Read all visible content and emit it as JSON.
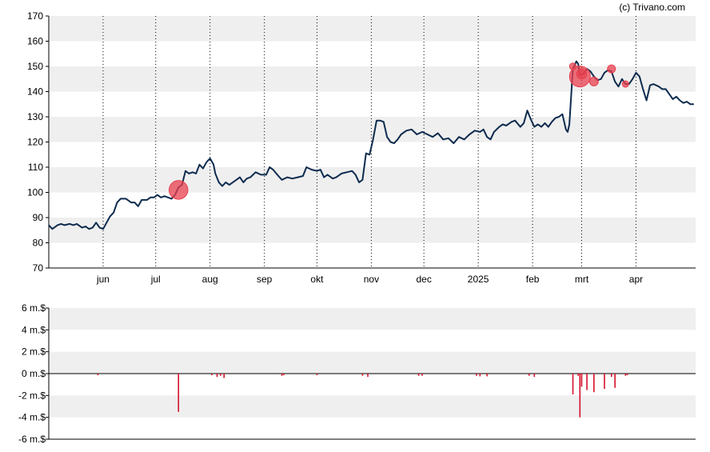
{
  "copyright": "(c) Trivano.com",
  "colors": {
    "band": "#efefef",
    "price_line": "#0d2b4e",
    "marker": "#e8404f",
    "volume_bar": "#d6102a"
  },
  "chart_data": [
    {
      "type": "line",
      "ylim": [
        70,
        170
      ],
      "y_ticks": [
        "70",
        "80",
        "90",
        "100",
        "110",
        "120",
        "130",
        "140",
        "150",
        "160",
        "170"
      ],
      "x_range": [
        "2024-05-01",
        "2025-05-05"
      ],
      "month_ticks": [
        {
          "date": "2024-06-01",
          "label": "jun"
        },
        {
          "date": "2024-07-01",
          "label": "jul"
        },
        {
          "date": "2024-08-01",
          "label": "aug"
        },
        {
          "date": "2024-09-01",
          "label": "sep"
        },
        {
          "date": "2024-10-01",
          "label": "okt"
        },
        {
          "date": "2024-11-01",
          "label": "nov"
        },
        {
          "date": "2024-12-01",
          "label": "dec"
        },
        {
          "date": "2025-01-01",
          "label": "2025"
        },
        {
          "date": "2025-02-01",
          "label": "feb"
        },
        {
          "date": "2025-03-01",
          "label": "mrt"
        },
        {
          "date": "2025-04-01",
          "label": "apr"
        }
      ],
      "series": [
        {
          "points": [
            [
              "2024-05-01",
              87
            ],
            [
              "2024-05-03",
              85.5
            ],
            [
              "2024-05-06",
              87
            ],
            [
              "2024-05-08",
              87.5
            ],
            [
              "2024-05-10",
              87
            ],
            [
              "2024-05-13",
              87.5
            ],
            [
              "2024-05-15",
              87
            ],
            [
              "2024-05-17",
              87.5
            ],
            [
              "2024-05-20",
              86
            ],
            [
              "2024-05-22",
              86.5
            ],
            [
              "2024-05-24",
              85.5
            ],
            [
              "2024-05-26",
              86
            ],
            [
              "2024-05-28",
              88
            ],
            [
              "2024-05-30",
              86
            ],
            [
              "2024-06-01",
              85.5
            ],
            [
              "2024-06-03",
              88
            ],
            [
              "2024-06-05",
              90.5
            ],
            [
              "2024-06-07",
              92
            ],
            [
              "2024-06-09",
              96
            ],
            [
              "2024-06-11",
              97.5
            ],
            [
              "2024-06-14",
              97.5
            ],
            [
              "2024-06-17",
              96
            ],
            [
              "2024-06-19",
              96
            ],
            [
              "2024-06-21",
              94.5
            ],
            [
              "2024-06-23",
              97
            ],
            [
              "2024-06-26",
              97
            ],
            [
              "2024-06-28",
              98
            ],
            [
              "2024-06-30",
              98
            ],
            [
              "2024-07-02",
              99
            ],
            [
              "2024-07-04",
              98
            ],
            [
              "2024-07-06",
              98.5
            ],
            [
              "2024-07-08",
              98
            ],
            [
              "2024-07-10",
              97.5
            ],
            [
              "2024-07-12",
              99
            ],
            [
              "2024-07-14",
              102
            ],
            [
              "2024-07-16",
              103
            ],
            [
              "2024-07-18",
              108.5
            ],
            [
              "2024-07-20",
              107.5
            ],
            [
              "2024-07-22",
              108
            ],
            [
              "2024-07-24",
              107.5
            ],
            [
              "2024-07-26",
              111
            ],
            [
              "2024-07-28",
              109.5
            ],
            [
              "2024-07-30",
              112
            ],
            [
              "2024-08-01",
              113.5
            ],
            [
              "2024-08-03",
              111
            ],
            [
              "2024-08-04",
              107.5
            ],
            [
              "2024-08-06",
              104
            ],
            [
              "2024-08-08",
              102.5
            ],
            [
              "2024-08-10",
              104
            ],
            [
              "2024-08-12",
              103
            ],
            [
              "2024-08-14",
              104
            ],
            [
              "2024-08-16",
              105
            ],
            [
              "2024-08-18",
              106
            ],
            [
              "2024-08-20",
              104
            ],
            [
              "2024-08-22",
              105.5
            ],
            [
              "2024-08-24",
              106
            ],
            [
              "2024-08-27",
              108
            ],
            [
              "2024-08-30",
              107
            ],
            [
              "2024-09-02",
              107
            ],
            [
              "2024-09-04",
              110
            ],
            [
              "2024-09-06",
              109
            ],
            [
              "2024-09-09",
              106.5
            ],
            [
              "2024-09-11",
              105
            ],
            [
              "2024-09-14",
              106
            ],
            [
              "2024-09-17",
              105.5
            ],
            [
              "2024-09-20",
              106
            ],
            [
              "2024-09-23",
              106.5
            ],
            [
              "2024-09-25",
              110
            ],
            [
              "2024-09-28",
              109
            ],
            [
              "2024-10-01",
              108.5
            ],
            [
              "2024-10-03",
              109
            ],
            [
              "2024-10-05",
              106
            ],
            [
              "2024-10-07",
              107
            ],
            [
              "2024-10-10",
              105.5
            ],
            [
              "2024-10-12",
              106
            ],
            [
              "2024-10-15",
              107.5
            ],
            [
              "2024-10-18",
              108
            ],
            [
              "2024-10-21",
              108.5
            ],
            [
              "2024-10-23",
              107
            ],
            [
              "2024-10-25",
              104
            ],
            [
              "2024-10-27",
              105
            ],
            [
              "2024-10-29",
              115.5
            ],
            [
              "2024-10-31",
              115
            ],
            [
              "2024-11-02",
              121
            ],
            [
              "2024-11-04",
              128.5
            ],
            [
              "2024-11-06",
              128.5
            ],
            [
              "2024-11-08",
              128
            ],
            [
              "2024-11-10",
              122
            ],
            [
              "2024-11-12",
              120
            ],
            [
              "2024-11-14",
              119.5
            ],
            [
              "2024-11-16",
              121
            ],
            [
              "2024-11-18",
              123
            ],
            [
              "2024-11-21",
              124.5
            ],
            [
              "2024-11-24",
              125
            ],
            [
              "2024-11-27",
              123
            ],
            [
              "2024-11-30",
              124
            ],
            [
              "2024-12-03",
              123
            ],
            [
              "2024-12-06",
              122
            ],
            [
              "2024-12-09",
              123.5
            ],
            [
              "2024-12-12",
              121
            ],
            [
              "2024-12-15",
              121.5
            ],
            [
              "2024-12-18",
              119.5
            ],
            [
              "2024-12-21",
              122
            ],
            [
              "2024-12-24",
              121
            ],
            [
              "2024-12-27",
              123
            ],
            [
              "2024-12-30",
              124.5
            ],
            [
              "2025-01-02",
              124
            ],
            [
              "2025-01-04",
              125
            ],
            [
              "2025-01-06",
              122
            ],
            [
              "2025-01-08",
              121
            ],
            [
              "2025-01-10",
              124
            ],
            [
              "2025-01-13",
              126
            ],
            [
              "2025-01-15",
              127
            ],
            [
              "2025-01-17",
              126.5
            ],
            [
              "2025-01-20",
              128
            ],
            [
              "2025-01-22",
              128.5
            ],
            [
              "2025-01-25",
              126
            ],
            [
              "2025-01-27",
              127.5
            ],
            [
              "2025-01-29",
              132.5
            ],
            [
              "2025-01-31",
              129
            ],
            [
              "2025-02-02",
              126
            ],
            [
              "2025-02-04",
              127
            ],
            [
              "2025-02-06",
              126
            ],
            [
              "2025-02-08",
              127.5
            ],
            [
              "2025-02-10",
              126
            ],
            [
              "2025-02-12",
              128
            ],
            [
              "2025-02-14",
              129.5
            ],
            [
              "2025-02-16",
              130
            ],
            [
              "2025-02-18",
              131
            ],
            [
              "2025-02-20",
              125
            ],
            [
              "2025-02-21",
              124
            ],
            [
              "2025-02-22",
              127
            ],
            [
              "2025-02-24",
              149
            ],
            [
              "2025-02-26",
              152
            ],
            [
              "2025-02-27",
              151
            ],
            [
              "2025-02-28",
              146.5
            ],
            [
              "2025-03-02",
              147
            ],
            [
              "2025-03-04",
              149
            ],
            [
              "2025-03-06",
              148
            ],
            [
              "2025-03-08",
              146
            ],
            [
              "2025-03-10",
              144.5
            ],
            [
              "2025-03-12",
              145
            ],
            [
              "2025-03-14",
              147.5
            ],
            [
              "2025-03-16",
              148.5
            ],
            [
              "2025-03-18",
              148
            ],
            [
              "2025-03-20",
              144
            ],
            [
              "2025-03-22",
              142
            ],
            [
              "2025-03-24",
              145
            ],
            [
              "2025-03-26",
              143
            ],
            [
              "2025-03-28",
              143
            ],
            [
              "2025-03-30",
              145
            ],
            [
              "2025-04-01",
              147.5
            ],
            [
              "2025-04-03",
              146
            ],
            [
              "2025-04-05",
              141
            ],
            [
              "2025-04-07",
              136.5
            ],
            [
              "2025-04-09",
              142.5
            ],
            [
              "2025-04-11",
              143
            ],
            [
              "2025-04-14",
              142
            ],
            [
              "2025-04-16",
              141
            ],
            [
              "2025-04-18",
              141
            ],
            [
              "2025-04-20",
              139
            ],
            [
              "2025-04-22",
              137
            ],
            [
              "2025-04-24",
              138
            ],
            [
              "2025-04-26",
              136.5
            ],
            [
              "2025-04-28",
              135.5
            ],
            [
              "2025-04-30",
              136
            ],
            [
              "2025-05-02",
              135
            ],
            [
              "2025-05-04",
              135
            ]
          ]
        }
      ],
      "markers": [
        {
          "date": "2024-07-14",
          "value": 101,
          "size": 3.5
        },
        {
          "date": "2025-02-24",
          "value": 150,
          "size": 0.5
        },
        {
          "date": "2025-02-28",
          "value": 146,
          "size": 4.0
        },
        {
          "date": "2025-03-01",
          "value": 147,
          "size": 1.3
        },
        {
          "date": "2025-03-08",
          "value": 144,
          "size": 1.0
        },
        {
          "date": "2025-03-18",
          "value": 149,
          "size": 0.8
        },
        {
          "date": "2025-03-26",
          "value": 143,
          "size": 0.4
        }
      ]
    },
    {
      "type": "bar",
      "ylim": [
        -6,
        6
      ],
      "y_ticks": [
        "-6 m.$",
        "-4 m.$",
        "-2 m.$",
        "0 m.$",
        "2 m.$",
        "4 m.$",
        "6 m.$"
      ],
      "bars": [
        {
          "date": "2024-05-29",
          "value": -0.15
        },
        {
          "date": "2024-07-14",
          "value": -3.5
        },
        {
          "date": "2024-08-02",
          "value": -0.15
        },
        {
          "date": "2024-08-05",
          "value": -0.3
        },
        {
          "date": "2024-08-07",
          "value": -0.2
        },
        {
          "date": "2024-08-09",
          "value": -0.4
        },
        {
          "date": "2024-09-11",
          "value": -0.2
        },
        {
          "date": "2024-09-12",
          "value": -0.15
        },
        {
          "date": "2024-10-01",
          "value": -0.15
        },
        {
          "date": "2024-10-27",
          "value": -0.2
        },
        {
          "date": "2024-10-30",
          "value": -0.3
        },
        {
          "date": "2024-11-28",
          "value": -0.2
        },
        {
          "date": "2024-11-30",
          "value": -0.2
        },
        {
          "date": "2024-12-31",
          "value": -0.2
        },
        {
          "date": "2025-01-02",
          "value": -0.25
        },
        {
          "date": "2025-01-06",
          "value": -0.25
        },
        {
          "date": "2025-01-30",
          "value": -0.2
        },
        {
          "date": "2025-02-02",
          "value": -0.3
        },
        {
          "date": "2025-02-24",
          "value": -1.9
        },
        {
          "date": "2025-02-27",
          "value": -0.2
        },
        {
          "date": "2025-02-28",
          "value": -4.0
        },
        {
          "date": "2025-03-01",
          "value": -1.2
        },
        {
          "date": "2025-03-04",
          "value": -1.5
        },
        {
          "date": "2025-03-08",
          "value": -1.7
        },
        {
          "date": "2025-03-14",
          "value": -1.4
        },
        {
          "date": "2025-03-18",
          "value": -0.3
        },
        {
          "date": "2025-03-20",
          "value": -1.3
        },
        {
          "date": "2025-03-26",
          "value": -0.2
        },
        {
          "date": "2025-03-27",
          "value": -0.15
        }
      ]
    }
  ]
}
